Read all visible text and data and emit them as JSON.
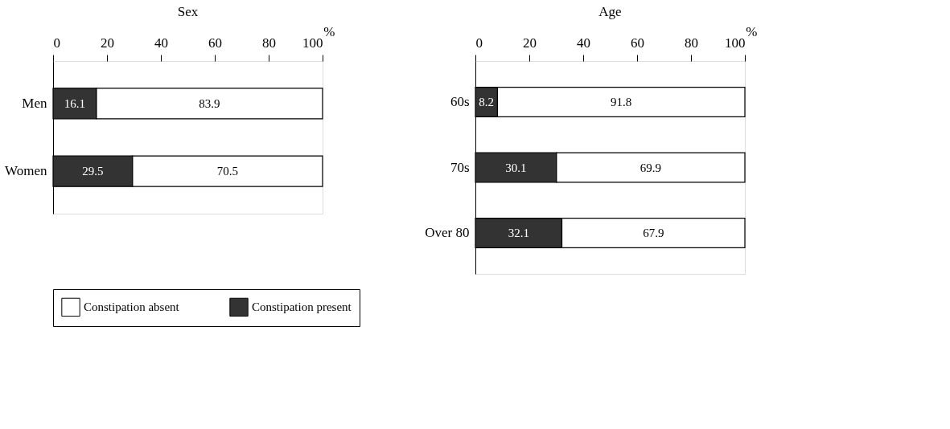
{
  "chart_data": [
    {
      "type": "bar",
      "orientation": "horizontal",
      "stacked": true,
      "title": "Sex",
      "xlabel": "%",
      "categories": [
        "Men",
        "Women"
      ],
      "series": [
        {
          "name": "Constipation present",
          "color": "#333333",
          "values": [
            16.1,
            29.5
          ]
        },
        {
          "name": "Constipation absent",
          "color": "#ffffff",
          "values": [
            83.9,
            70.5
          ]
        }
      ],
      "xlim": [
        0,
        100
      ],
      "xticks": [
        0,
        20,
        40,
        60,
        80,
        100
      ],
      "data_labels": true,
      "grid": false,
      "legend": "bottom"
    },
    {
      "type": "bar",
      "orientation": "horizontal",
      "stacked": true,
      "title": "Age",
      "xlabel": "%",
      "categories": [
        "60s",
        "70s",
        "Over 80"
      ],
      "series": [
        {
          "name": "Constipation present",
          "color": "#333333",
          "values": [
            8.2,
            30.1,
            32.1
          ]
        },
        {
          "name": "Constipation absent",
          "color": "#ffffff",
          "values": [
            91.8,
            69.9,
            67.9
          ]
        }
      ],
      "xlim": [
        0,
        100
      ],
      "xticks": [
        0,
        20,
        40,
        60,
        80,
        100
      ],
      "data_labels": true,
      "grid": false,
      "legend": "bottom"
    }
  ]
}
